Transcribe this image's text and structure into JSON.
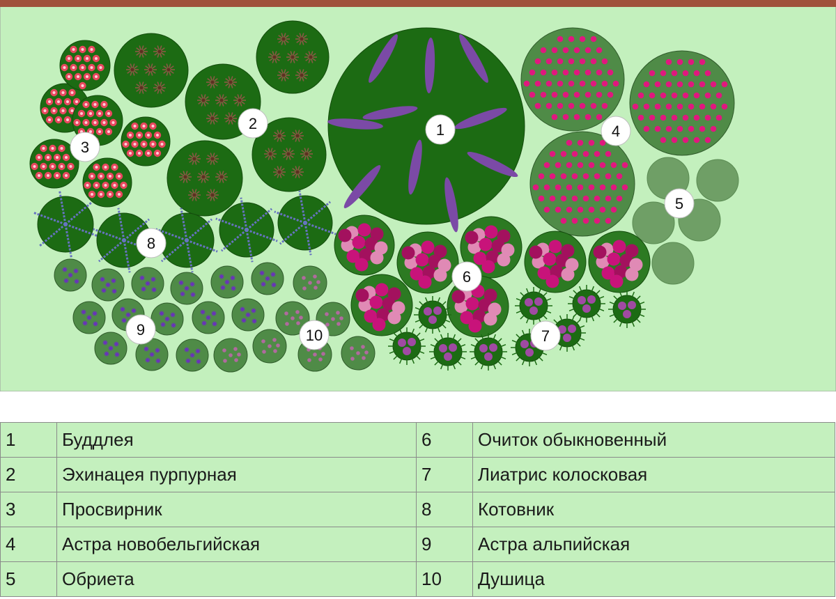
{
  "plan": {
    "colors": {
      "header_bar": "#a0523c",
      "lawn": "#c3f0bd",
      "leaf_dark": "#1c6b13",
      "leaf_mid": "#4f8b47",
      "leaf_soft": "#70a466",
      "buddleia_flower": "#7b4aa6",
      "echinacea_flower": "#8a5a45",
      "mallow_flower": "#e8475e",
      "aster_flower": "#e0187e",
      "aubrieta": "#6f9f66",
      "sedum_flower": "#c8137a",
      "liatris_flower": "#a04aa3",
      "catmint_flower": "#6673c0",
      "alpine_aster_flower": "#6a2fc0",
      "oregano_flower": "#b06a9e",
      "badge": "#ffffff"
    },
    "markers": [
      "1",
      "2",
      "3",
      "4",
      "5",
      "6",
      "7",
      "8",
      "9",
      "10"
    ]
  },
  "legend": {
    "rows": [
      {
        "n1": "1",
        "name1": "Буддлея",
        "n2": "6",
        "name2": "Очиток обыкновенный"
      },
      {
        "n1": "2",
        "name1": "Эхинацея пурпурная",
        "n2": "7",
        "name2": "Лиатрис колосковая"
      },
      {
        "n1": "3",
        "name1": "Просвирник",
        "n2": "8",
        "name2": "Котовник"
      },
      {
        "n1": "4",
        "name1": "Астра новобельгийская",
        "n2": "9",
        "name2": "Астра альпийская"
      },
      {
        "n1": "5",
        "name1": "Обриета",
        "n2": "10",
        "name2": "Душица"
      }
    ]
  }
}
